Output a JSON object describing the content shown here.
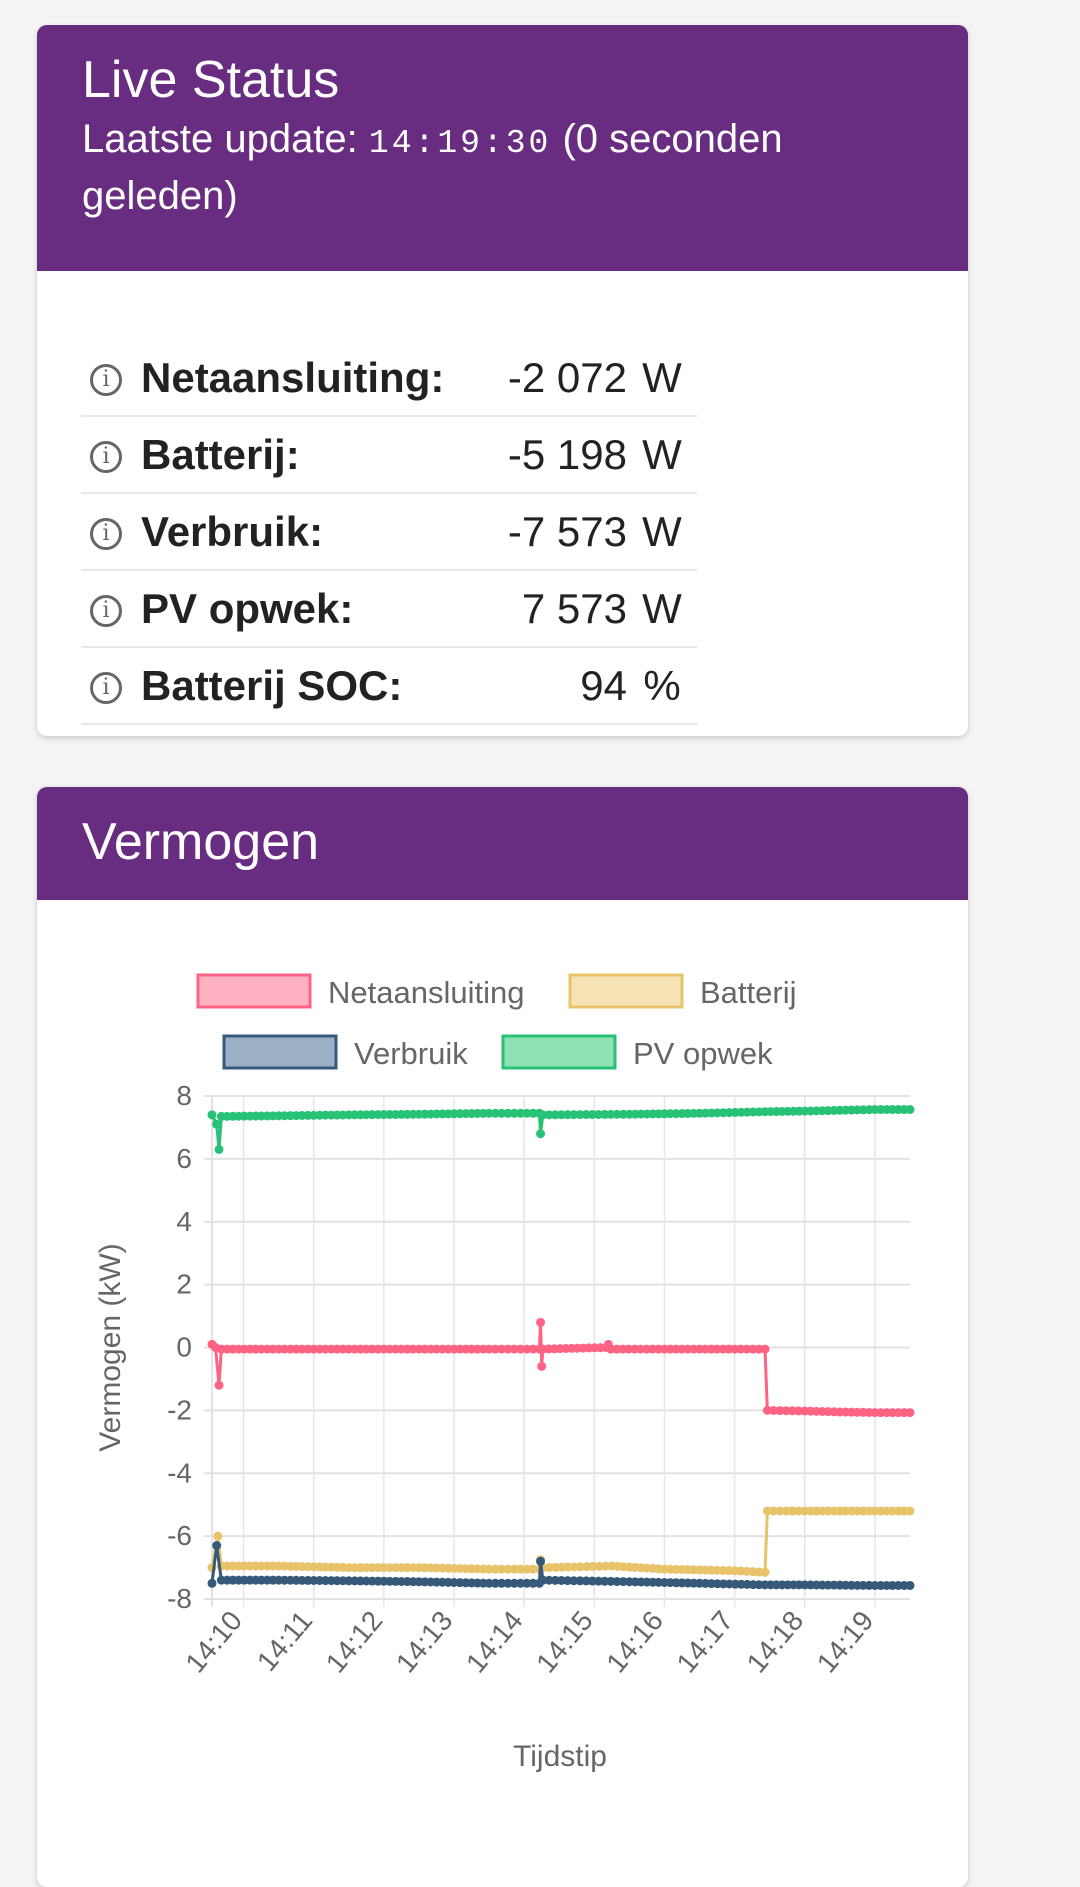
{
  "live": {
    "title": "Live Status",
    "update_label": "Laatste update:",
    "update_time": "14:19:30",
    "update_ago": "(0 seconden geleden)",
    "rows": [
      {
        "label": "Netaansluiting:",
        "value": "-2 072",
        "unit": "W"
      },
      {
        "label": "Batterij:",
        "value": "-5 198",
        "unit": "W"
      },
      {
        "label": "Verbruik:",
        "value": "-7 573",
        "unit": "W"
      },
      {
        "label": "PV opwek:",
        "value": "7 573",
        "unit": "W"
      },
      {
        "label": "Batterij SOC:",
        "value": "94",
        "unit": "%"
      }
    ]
  },
  "chart_title": "Vermogen",
  "chart_data": {
    "type": "line",
    "xlabel": "Tijdstip",
    "ylabel": "Vermogen (kW)",
    "xlim": [
      "14:09:33",
      "14:19:30"
    ],
    "ylim": [
      -8,
      8
    ],
    "yticks": [
      8,
      6,
      4,
      2,
      0,
      -2,
      -4,
      -6,
      -8
    ],
    "xticks": [
      "14:10",
      "14:11",
      "14:12",
      "14:13",
      "14:14",
      "14:15",
      "14:16",
      "14:17",
      "14:18",
      "14:19"
    ],
    "grid": true,
    "legend": "top",
    "series": [
      {
        "name": "Netaansluiting",
        "color": "#ff6384",
        "fill": "#ffb1c1",
        "points": [
          [
            "14:09:33",
            0.1
          ],
          [
            "14:09:36",
            0
          ],
          [
            "14:09:39",
            -1.2
          ],
          [
            "14:09:41",
            -0.05
          ],
          [
            "14:10:30",
            -0.05
          ],
          [
            "14:11:30",
            -0.05
          ],
          [
            "14:12:30",
            -0.05
          ],
          [
            "14:13:30",
            -0.05
          ],
          [
            "14:14:13",
            -0.05
          ],
          [
            "14:14:14",
            0.8
          ],
          [
            "14:14:15",
            -0.6
          ],
          [
            "14:14:16",
            -0.05
          ],
          [
            "14:15:10",
            0
          ],
          [
            "14:15:12",
            0.1
          ],
          [
            "14:15:14",
            -0.05
          ],
          [
            "14:16:00",
            -0.05
          ],
          [
            "14:17:00",
            -0.05
          ],
          [
            "14:17:26",
            -0.05
          ],
          [
            "14:17:28",
            -2.0
          ],
          [
            "14:18:00",
            -2.02
          ],
          [
            "14:18:30",
            -2.05
          ],
          [
            "14:19:00",
            -2.07
          ],
          [
            "14:19:30",
            -2.07
          ]
        ]
      },
      {
        "name": "Batterij",
        "color": "#e8c36a",
        "fill": "#f5e2b5",
        "points": [
          [
            "14:09:33",
            -7.0
          ],
          [
            "14:09:38",
            -6.0
          ],
          [
            "14:09:41",
            -6.95
          ],
          [
            "14:10:30",
            -6.95
          ],
          [
            "14:11:30",
            -7.0
          ],
          [
            "14:12:30",
            -7.0
          ],
          [
            "14:13:30",
            -7.05
          ],
          [
            "14:14:13",
            -7.05
          ],
          [
            "14:14:14",
            -6.75
          ],
          [
            "14:14:16",
            -7.0
          ],
          [
            "14:15:15",
            -6.95
          ],
          [
            "14:16:00",
            -7.05
          ],
          [
            "14:17:00",
            -7.1
          ],
          [
            "14:17:26",
            -7.15
          ],
          [
            "14:17:28",
            -5.2
          ],
          [
            "14:18:00",
            -5.2
          ],
          [
            "14:19:00",
            -5.2
          ],
          [
            "14:19:30",
            -5.2
          ]
        ]
      },
      {
        "name": "Verbruik",
        "color": "#36597a",
        "fill": "#9bb0c4",
        "points": [
          [
            "14:09:33",
            -7.5
          ],
          [
            "14:09:37",
            -6.3
          ],
          [
            "14:09:41",
            -7.4
          ],
          [
            "14:10:30",
            -7.4
          ],
          [
            "14:11:30",
            -7.42
          ],
          [
            "14:12:30",
            -7.45
          ],
          [
            "14:13:30",
            -7.5
          ],
          [
            "14:14:13",
            -7.5
          ],
          [
            "14:14:14",
            -6.8
          ],
          [
            "14:14:16",
            -7.4
          ],
          [
            "14:15:30",
            -7.45
          ],
          [
            "14:16:30",
            -7.5
          ],
          [
            "14:17:26",
            -7.55
          ],
          [
            "14:18:00",
            -7.55
          ],
          [
            "14:19:00",
            -7.57
          ],
          [
            "14:19:30",
            -7.57
          ]
        ]
      },
      {
        "name": "PV opwek",
        "color": "#27c275",
        "fill": "#8fe3b2",
        "points": [
          [
            "14:09:33",
            7.4
          ],
          [
            "14:09:37",
            7.1
          ],
          [
            "14:09:39",
            6.3
          ],
          [
            "14:09:41",
            7.35
          ],
          [
            "14:10:30",
            7.37
          ],
          [
            "14:11:30",
            7.4
          ],
          [
            "14:12:30",
            7.42
          ],
          [
            "14:13:30",
            7.45
          ],
          [
            "14:14:13",
            7.45
          ],
          [
            "14:14:14",
            6.8
          ],
          [
            "14:14:16",
            7.4
          ],
          [
            "14:15:30",
            7.42
          ],
          [
            "14:16:30",
            7.45
          ],
          [
            "14:17:26",
            7.5
          ],
          [
            "14:18:00",
            7.52
          ],
          [
            "14:19:00",
            7.57
          ],
          [
            "14:19:30",
            7.57
          ]
        ]
      }
    ]
  }
}
